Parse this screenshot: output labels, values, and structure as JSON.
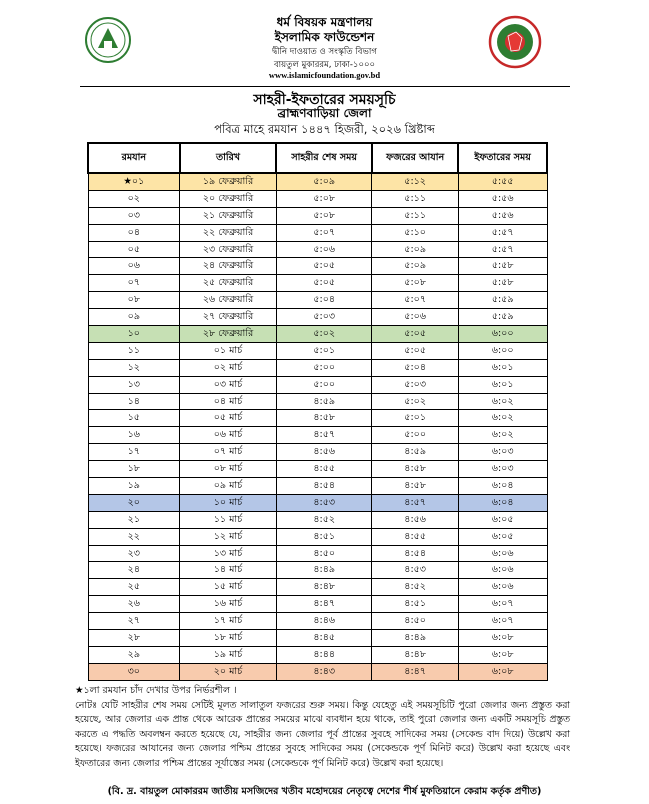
{
  "header": {
    "ministry": "ধর্ম বিষয়ক মন্ত্রণালয়",
    "foundation": "ইসলামিক ফাউন্ডেশন",
    "department": "দ্বীনি দাওয়াত ও সংস্কৃতি বিভাগ",
    "address": "বায়তুল মুকাররম, ঢাকা-১০০০",
    "website": "www.islamicfoundation.gov.bd",
    "title": "সাহরী-ইফতারের সময়সূচি",
    "district": "ব্রাহ্মণবাড়িয়া জেলা",
    "subtitle": "পবিত্র মাহে রমযান ১৪৪৭ হিজরী, ২০২৬ খ্রিষ্টাব্দ"
  },
  "logos": {
    "left": "islamic-foundation-logo",
    "right": "bangladesh-government-seal"
  },
  "table": {
    "columns": [
      "রমযান",
      "তারিখ",
      "সাহরীর শেষ সময়",
      "ফজরের আযান",
      "ইফতারের সময়"
    ],
    "highlight_colors": {
      "1": "#fde4a6",
      "10": "#c6e0b4",
      "20": "#b4c6e7",
      "30": "#f8cbad"
    },
    "rows": [
      [
        "★০১",
        "১৯ ফেব্রুয়ারি",
        "৫:০৯",
        "৫:১২",
        "৫:৫৫"
      ],
      [
        "০২",
        "২০ ফেব্রুয়ারি",
        "৫:০৮",
        "৫:১১",
        "৫:৫৬"
      ],
      [
        "০৩",
        "২১ ফেব্রুয়ারি",
        "৫:০৮",
        "৫:১১",
        "৫:৫৬"
      ],
      [
        "০৪",
        "২২ ফেব্রুয়ারি",
        "৫:০৭",
        "৫:১০",
        "৫:৫৭"
      ],
      [
        "০৫",
        "২৩ ফেব্রুয়ারি",
        "৫:০৬",
        "৫:০৯",
        "৫:৫৭"
      ],
      [
        "০৬",
        "২৪ ফেব্রুয়ারি",
        "৫:০৫",
        "৫:০৯",
        "৫:৫৮"
      ],
      [
        "০৭",
        "২৫ ফেব্রুয়ারি",
        "৫:০৫",
        "৫:০৮",
        "৫:৫৮"
      ],
      [
        "০৮",
        "২৬ ফেব্রুয়ারি",
        "৫:০৪",
        "৫:০৭",
        "৫:৫৯"
      ],
      [
        "০৯",
        "২৭ ফেব্রুয়ারি",
        "৫:০৩",
        "৫:০৬",
        "৫:৫৯"
      ],
      [
        "১০",
        "২৮ ফেব্রুয়ারি",
        "৫:০২",
        "৫:০৫",
        "৬:০০"
      ],
      [
        "১১",
        "০১ মার্চ",
        "৫:০১",
        "৫:০৫",
        "৬:০০"
      ],
      [
        "১২",
        "০২ মার্চ",
        "৫:০০",
        "৫:০৪",
        "৬:০১"
      ],
      [
        "১৩",
        "০৩ মার্চ",
        "৫:০০",
        "৫:০৩",
        "৬:০১"
      ],
      [
        "১৪",
        "০৪ মার্চ",
        "৪:৫৯",
        "৫:০২",
        "৬:০২"
      ],
      [
        "১৫",
        "০৫ মার্চ",
        "৪:৫৮",
        "৫:০১",
        "৬:০২"
      ],
      [
        "১৬",
        "০৬ মার্চ",
        "৪:৫৭",
        "৫:০০",
        "৬:০২"
      ],
      [
        "১৭",
        "০৭ মার্চ",
        "৪:৫৬",
        "৪:৫৯",
        "৬:০৩"
      ],
      [
        "১৮",
        "০৮ মার্চ",
        "৪:৫৫",
        "৪:৫৮",
        "৬:০৩"
      ],
      [
        "১৯",
        "০৯ মার্চ",
        "৪:৫৪",
        "৪:৫৮",
        "৬:০৪"
      ],
      [
        "২০",
        "১০ মার্চ",
        "৪:৫৩",
        "৪:৫৭",
        "৬:০৪"
      ],
      [
        "২১",
        "১১ মার্চ",
        "৪:৫২",
        "৪:৫৬",
        "৬:০৫"
      ],
      [
        "২২",
        "১২ মার্চ",
        "৪:৫১",
        "৪:৫৫",
        "৬:০৫"
      ],
      [
        "২৩",
        "১৩ মার্চ",
        "৪:৫০",
        "৪:৫৪",
        "৬:০৬"
      ],
      [
        "২৪",
        "১৪ মার্চ",
        "৪:৪৯",
        "৪:৫৩",
        "৬:০৬"
      ],
      [
        "২৫",
        "১৫ মার্চ",
        "৪:৪৮",
        "৪:৫২",
        "৬:০৬"
      ],
      [
        "২৬",
        "১৬ মার্চ",
        "৪:৪৭",
        "৪:৫১",
        "৬:০৭"
      ],
      [
        "২৭",
        "১৭ মার্চ",
        "৪:৪৬",
        "৪:৫০",
        "৬:০৭"
      ],
      [
        "২৮",
        "১৮ মার্চ",
        "৪:৪৫",
        "৪:৪৯",
        "৬:০৮"
      ],
      [
        "২৯",
        "১৯ মার্চ",
        "৪:৪৪",
        "৪:৪৮",
        "৬:০৮"
      ],
      [
        "৩০",
        "২০ মার্চ",
        "৪:৪৩",
        "৪:৪৭",
        "৬:০৮"
      ]
    ]
  },
  "notes": {
    "star_note": "★১লা রমযান চাঁদ দেখার উপর নির্ভরশীল ।",
    "note": "নোটঃ যেটি সাহরীর শেষ সময় সেটিই মূলত সালাতুল ফজরের শুরু সময়। কিন্তু যেহেতু এই সময়সূচিটি পুরো জেলার জন্য প্রস্তুত করা হয়েছে, আর জেলার এক প্রান্ত থেকে আরেক প্রান্তের সময়ের মাঝে ব্যবধান হয়ে থাকে, তাই পুরো জেলার জন্য একটি সময়সূচি প্রস্তুত করতে এ পদ্ধতি অবলম্বন করতে হয়েছে যে, সাহরীর জন্য জেলার পূর্ব প্রান্তের সুবহে সাদিকের সময় (সেকেন্ড বাদ দিয়ে) উল্লেখ করা হয়েছে। ফজরের আযানের জন্য জেলার পশ্চিম প্রান্তের সুবহে সাদিকের সময় (সেকেন্ডকে পূর্ণ মিনিট করে) উল্লেখ করা হয়েছে এবং ইফতারের জন্য জেলার পশ্চিম প্রান্তের সূর্যাস্তের সময় (সেকেন্ডকে পূর্ণ মিনিট করে) উল্লেখ করা হয়েছে।",
    "footer": "(বি. দ্র. বায়তুল মোকাররম জাতীয় মসজিদের খতীব মহোদয়ের নেতৃত্বে দেশের শীর্ষ মুফতিয়ানে কেরাম কর্তৃক প্রণীত)"
  }
}
